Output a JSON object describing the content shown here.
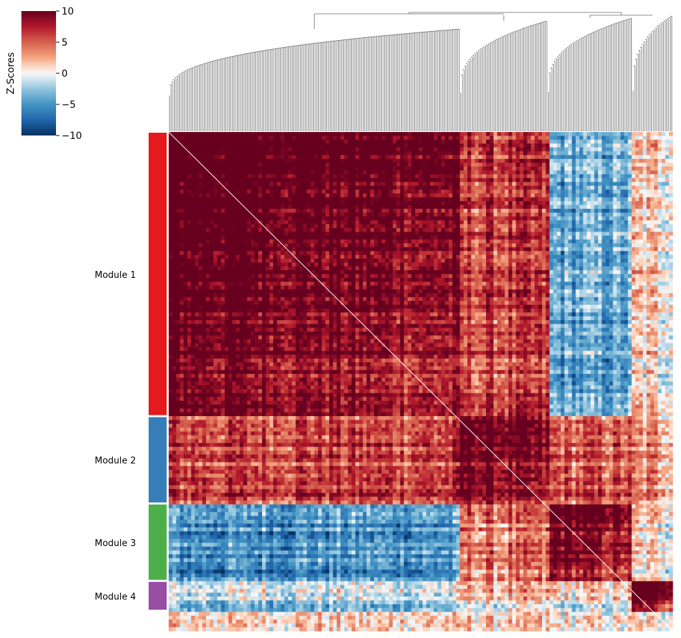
{
  "chart_data": {
    "type": "heatmap",
    "description_free": true,
    "colorbar": {
      "label": "Z-Scores",
      "range": [
        -10,
        10
      ],
      "ticks": [
        10,
        5,
        0,
        -5,
        -10
      ],
      "tick_labels": [
        "10",
        "5",
        "0",
        "−5",
        "−10"
      ],
      "colormap": "RdBu_r",
      "colors": {
        "high": "#67001f",
        "mid_high": "#d6604d",
        "neutral": "#f7f7f7",
        "mid_low": "#4393c3",
        "low": "#053061"
      }
    },
    "modules": [
      {
        "label": "Module 1",
        "color": "#e41a1c",
        "fraction": 0.57
      },
      {
        "label": "Module 2",
        "color": "#377eb8",
        "fraction": 0.175
      },
      {
        "label": "Module 3",
        "color": "#4daf4a",
        "fraction": 0.155
      },
      {
        "label": "Module 4",
        "color": "#984ea3",
        "fraction": 0.06
      },
      {
        "label": "",
        "color": "#ffffff",
        "fraction": 0.04
      }
    ],
    "block_means": [
      [
        9,
        6,
        -4,
        1,
        0
      ],
      [
        6,
        8,
        5,
        3,
        0
      ],
      [
        -5,
        4,
        8,
        1,
        0
      ],
      [
        -2,
        1,
        0,
        9,
        0
      ],
      [
        1,
        1,
        0,
        0,
        0
      ]
    ],
    "dendrogram": "column dendrogram drawn above the heatmap, gray",
    "dendrogram_color": "#666666"
  }
}
